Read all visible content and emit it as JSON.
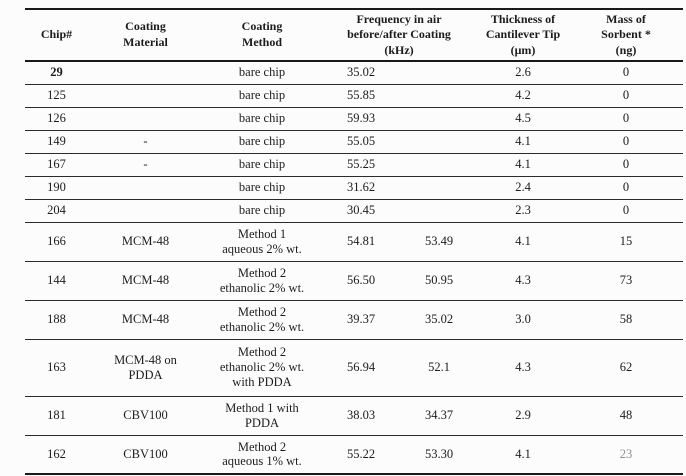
{
  "page": {
    "background_color": "#fcfcfc",
    "text_color": "#1c1c1c",
    "rule_color": "#1a1a1a"
  },
  "table": {
    "headers": {
      "chip": "Chip#",
      "material": "Coating\nMaterial",
      "method": "Coating\nMethod",
      "frequency": "Frequency in air\nbefore/after Coating\n(kHz)",
      "thickness": "Thickness of\nCantilever Tip\n(μm)",
      "mass": "Mass of\nSorbent *\n(ng)"
    },
    "rows": [
      {
        "chip": "29",
        "bold": true,
        "material": "",
        "method": "bare chip",
        "freq_before": "35.02",
        "freq_after": "",
        "thickness": "2.6",
        "mass": "0"
      },
      {
        "chip": "125",
        "material": "",
        "method": "bare chip",
        "freq_before": "55.85",
        "freq_after": "",
        "thickness": "4.2",
        "mass": "0"
      },
      {
        "chip": "126",
        "material": "",
        "method": "bare chip",
        "freq_before": "59.93",
        "freq_after": "",
        "thickness": "4.5",
        "mass": "0"
      },
      {
        "chip": "149",
        "material": "-",
        "method": "bare chip",
        "freq_before": "55.05",
        "freq_after": "",
        "thickness": "4.1",
        "mass": "0"
      },
      {
        "chip": "167",
        "material": "-",
        "method": "bare chip",
        "freq_before": "55.25",
        "freq_after": "",
        "thickness": "4.1",
        "mass": "0"
      },
      {
        "chip": "190",
        "material": "",
        "method": "bare chip",
        "freq_before": "31.62",
        "freq_after": "",
        "thickness": "2.4",
        "mass": "0"
      },
      {
        "chip": "204",
        "material": "",
        "method": "bare chip",
        "freq_before": "30.45",
        "freq_after": "",
        "thickness": "2.3",
        "mass": "0"
      },
      {
        "chip": "166",
        "material": "MCM-48",
        "method": "Method 1\naqueous 2% wt.",
        "freq_before": "54.81",
        "freq_after": "53.49",
        "thickness": "4.1",
        "mass": "15"
      },
      {
        "chip": "144",
        "material": "MCM-48",
        "method": "Method 2\nethanolic 2% wt.",
        "freq_before": "56.50",
        "freq_after": "50.95",
        "thickness": "4.3",
        "mass": "73"
      },
      {
        "chip": "188",
        "material": "MCM-48",
        "method": "Method 2\nethanolic 2% wt.",
        "freq_before": "39.37",
        "freq_after": "35.02",
        "thickness": "3.0",
        "mass": "58"
      },
      {
        "chip": "163",
        "material": "MCM-48 on\nPDDA",
        "method": "Method 2\nethanolic 2% wt.\nwith PDDA",
        "freq_before": "56.94",
        "freq_after": "52.1",
        "thickness": "4.3",
        "mass": "62"
      },
      {
        "chip": "181",
        "material": "CBV100",
        "method": "Method 1 with\nPDDA",
        "freq_before": "38.03",
        "freq_after": "34.37",
        "thickness": "2.9",
        "mass": "48"
      },
      {
        "chip": "162",
        "material": "CBV100",
        "method": "Method 2\naqueous 1% wt.",
        "freq_before": "55.22",
        "freq_after": "53.30",
        "thickness": "4.1",
        "mass": "23",
        "mass_faded": true
      }
    ]
  }
}
